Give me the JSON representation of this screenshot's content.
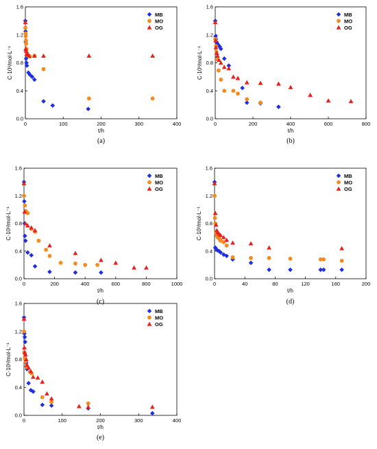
{
  "colors": {
    "MB": "#1f2fe0",
    "MO": "#f58a1f",
    "OG": "#e8211c"
  },
  "chart_data": [
    {
      "panel": "(a)",
      "type": "scatter",
      "xlabel": "t/h",
      "ylabel": "C·10³/mol·L⁻¹",
      "xlim": [
        0,
        400
      ],
      "ylim": [
        0,
        1.6
      ],
      "xticks": [
        "0",
        "100",
        "200",
        "300",
        "400"
      ],
      "yticks": [
        "0.0",
        "0.4",
        "0.8",
        "1.2",
        "1.6"
      ],
      "legend": "top-right",
      "series": [
        {
          "name": "MB",
          "marker": "diamond",
          "points": [
            [
              0,
              1.4
            ],
            [
              0.5,
              1.25
            ],
            [
              1,
              1.1
            ],
            [
              1.5,
              0.98
            ],
            [
              2,
              0.86
            ],
            [
              3,
              0.8
            ],
            [
              4,
              0.76
            ],
            [
              8,
              0.66
            ],
            [
              12,
              0.63
            ],
            [
              18,
              0.6
            ],
            [
              24,
              0.56
            ],
            [
              48,
              0.25
            ],
            [
              72,
              0.19
            ],
            [
              166,
              0.14
            ]
          ]
        },
        {
          "name": "MO",
          "marker": "circle",
          "points": [
            [
              0,
              1.3
            ],
            [
              0.5,
              1.22
            ],
            [
              1,
              1.18
            ],
            [
              1.5,
              1.12
            ],
            [
              2,
              1.07
            ],
            [
              3,
              1.0
            ],
            [
              4,
              0.94
            ],
            [
              6,
              0.91
            ],
            [
              12,
              0.89
            ],
            [
              24,
              0.9
            ],
            [
              48,
              0.71
            ],
            [
              168,
              0.29
            ],
            [
              336,
              0.29
            ]
          ]
        },
        {
          "name": "OG",
          "marker": "triangle",
          "points": [
            [
              0,
              1.38
            ],
            [
              1,
              1.0
            ],
            [
              2,
              0.97
            ],
            [
              4,
              0.93
            ],
            [
              6,
              0.92
            ],
            [
              10,
              0.9
            ],
            [
              24,
              0.9
            ],
            [
              48,
              0.9
            ],
            [
              168,
              0.9
            ],
            [
              336,
              0.9
            ]
          ]
        }
      ]
    },
    {
      "panel": "(b)",
      "type": "scatter",
      "xlabel": "t/h",
      "ylabel": "C·10³/mol·L⁻¹",
      "xlim": [
        0,
        800
      ],
      "ylim": [
        0,
        1.6
      ],
      "xticks": [
        "0",
        "200",
        "400",
        "600",
        "800"
      ],
      "yticks": [
        "0.0",
        "0.4",
        "0.8",
        "1.2",
        "1.6"
      ],
      "legend": "top-right",
      "series": [
        {
          "name": "MB",
          "marker": "diamond",
          "points": [
            [
              0,
              1.4
            ],
            [
              2,
              1.18
            ],
            [
              4,
              1.14
            ],
            [
              6,
              1.1
            ],
            [
              10,
              1.08
            ],
            [
              18,
              1.05
            ],
            [
              24,
              1.03
            ],
            [
              30,
              1.0
            ],
            [
              48,
              0.86
            ],
            [
              72,
              0.76
            ],
            [
              144,
              0.44
            ],
            [
              168,
              0.23
            ],
            [
              240,
              0.22
            ],
            [
              336,
              0.17
            ]
          ]
        },
        {
          "name": "MO",
          "marker": "circle",
          "points": [
            [
              0,
              1.14
            ],
            [
              4,
              1.04
            ],
            [
              6,
              0.96
            ],
            [
              10,
              0.85
            ],
            [
              18,
              0.69
            ],
            [
              30,
              0.56
            ],
            [
              48,
              0.4
            ],
            [
              96,
              0.4
            ],
            [
              120,
              0.36
            ],
            [
              168,
              0.28
            ],
            [
              240,
              0.23
            ]
          ]
        },
        {
          "name": "OG",
          "marker": "triangle",
          "points": [
            [
              0,
              1.38
            ],
            [
              2,
              1.12
            ],
            [
              4,
              1.02
            ],
            [
              8,
              0.94
            ],
            [
              12,
              0.9
            ],
            [
              20,
              0.84
            ],
            [
              30,
              0.8
            ],
            [
              48,
              0.74
            ],
            [
              72,
              0.72
            ],
            [
              96,
              0.6
            ],
            [
              120,
              0.58
            ],
            [
              168,
              0.52
            ],
            [
              240,
              0.51
            ],
            [
              336,
              0.5
            ],
            [
              400,
              0.45
            ],
            [
              504,
              0.34
            ],
            [
              600,
              0.26
            ],
            [
              720,
              0.25
            ]
          ]
        }
      ]
    },
    {
      "panel": "(c)",
      "type": "scatter",
      "xlabel": "t/h",
      "ylabel": "C·10³/mol·L⁻¹",
      "xlim": [
        0,
        1000
      ],
      "ylim": [
        0,
        1.6
      ],
      "xticks": [
        "0",
        "200",
        "400",
        "600",
        "800",
        "1000"
      ],
      "yticks": [
        "0.0",
        "0.4",
        "0.8",
        "1.2",
        "1.6"
      ],
      "legend": "top-right",
      "series": [
        {
          "name": "MB",
          "marker": "diamond",
          "points": [
            [
              0,
              1.4
            ],
            [
              2,
              1.12
            ],
            [
              4,
              0.8
            ],
            [
              6,
              0.62
            ],
            [
              10,
              0.55
            ],
            [
              24,
              0.38
            ],
            [
              48,
              0.34
            ],
            [
              72,
              0.18
            ],
            [
              168,
              0.1
            ],
            [
              336,
              0.09
            ],
            [
              504,
              0.09
            ]
          ]
        },
        {
          "name": "MO",
          "marker": "circle",
          "points": [
            [
              0,
              1.2
            ],
            [
              6,
              1.06
            ],
            [
              12,
              0.98
            ],
            [
              24,
              0.95
            ],
            [
              48,
              0.72
            ],
            [
              72,
              0.68
            ],
            [
              96,
              0.55
            ],
            [
              144,
              0.42
            ],
            [
              168,
              0.33
            ],
            [
              240,
              0.23
            ],
            [
              336,
              0.22
            ],
            [
              400,
              0.2
            ],
            [
              480,
              0.2
            ]
          ]
        },
        {
          "name": "OG",
          "marker": "triangle",
          "points": [
            [
              0,
              1.38
            ],
            [
              4,
              0.97
            ],
            [
              10,
              0.8
            ],
            [
              24,
              0.77
            ],
            [
              48,
              0.74
            ],
            [
              72,
              0.7
            ],
            [
              168,
              0.48
            ],
            [
              336,
              0.37
            ],
            [
              504,
              0.27
            ],
            [
              600,
              0.23
            ],
            [
              720,
              0.16
            ],
            [
              800,
              0.16
            ]
          ]
        }
      ]
    },
    {
      "panel": "(d)",
      "type": "scatter",
      "xlabel": "t/h",
      "ylabel": "C·10³/mol·L⁻¹",
      "xlim": [
        0,
        200
      ],
      "ylim": [
        0,
        1.6
      ],
      "xticks": [
        "0",
        "40",
        "80",
        "120",
        "160",
        "200"
      ],
      "yticks": [
        "0.0",
        "0.4",
        "0.8",
        "1.2",
        "1.6"
      ],
      "legend": "top-right",
      "series": [
        {
          "name": "MB",
          "marker": "diamond",
          "points": [
            [
              0,
              1.4
            ],
            [
              1,
              0.45
            ],
            [
              2,
              0.43
            ],
            [
              4,
              0.41
            ],
            [
              6,
              0.4
            ],
            [
              8,
              0.38
            ],
            [
              12,
              0.35
            ],
            [
              16,
              0.33
            ],
            [
              24,
              0.28
            ],
            [
              48,
              0.23
            ],
            [
              72,
              0.13
            ],
            [
              100,
              0.13
            ],
            [
              140,
              0.13
            ],
            [
              144,
              0.13
            ],
            [
              168,
              0.13
            ]
          ]
        },
        {
          "name": "MO",
          "marker": "circle",
          "points": [
            [
              0,
              1.2
            ],
            [
              0.5,
              0.88
            ],
            [
              1,
              0.8
            ],
            [
              2,
              0.67
            ],
            [
              3,
              0.62
            ],
            [
              4,
              0.6
            ],
            [
              6,
              0.58
            ],
            [
              8,
              0.55
            ],
            [
              12,
              0.53
            ],
            [
              16,
              0.48
            ],
            [
              24,
              0.31
            ],
            [
              48,
              0.3
            ],
            [
              72,
              0.3
            ],
            [
              100,
              0.29
            ],
            [
              140,
              0.28
            ],
            [
              144,
              0.28
            ],
            [
              168,
              0.26
            ]
          ]
        },
        {
          "name": "OG",
          "marker": "triangle",
          "points": [
            [
              0,
              1.38
            ],
            [
              1,
              0.95
            ],
            [
              2,
              0.78
            ],
            [
              3,
              0.7
            ],
            [
              4,
              0.67
            ],
            [
              6,
              0.65
            ],
            [
              8,
              0.63
            ],
            [
              12,
              0.6
            ],
            [
              16,
              0.56
            ],
            [
              24,
              0.52
            ],
            [
              48,
              0.51
            ],
            [
              72,
              0.45
            ],
            [
              168,
              0.44
            ]
          ]
        }
      ]
    },
    {
      "panel": "(e)",
      "type": "scatter",
      "xlabel": "t/h",
      "ylabel": "C·10³/mol·L⁻¹",
      "xlim": [
        0,
        400
      ],
      "ylim": [
        0,
        1.6
      ],
      "xticks": [
        "0",
        "100",
        "200",
        "300",
        "400"
      ],
      "yticks": [
        "0.0",
        "0.4",
        "0.8",
        "1.2",
        "1.6"
      ],
      "legend": "top-right",
      "series": [
        {
          "name": "MB",
          "marker": "diamond",
          "points": [
            [
              0,
              1.4
            ],
            [
              1,
              1.17
            ],
            [
              2,
              1.12
            ],
            [
              3,
              1.05
            ],
            [
              4,
              0.8
            ],
            [
              6,
              0.75
            ],
            [
              8,
              0.66
            ],
            [
              12,
              0.46
            ],
            [
              18,
              0.36
            ],
            [
              24,
              0.34
            ],
            [
              48,
              0.15
            ],
            [
              72,
              0.14
            ],
            [
              168,
              0.1
            ],
            [
              336,
              0.03
            ]
          ]
        },
        {
          "name": "MO",
          "marker": "circle",
          "points": [
            [
              0,
              1.2
            ],
            [
              1,
              0.9
            ],
            [
              2,
              0.82
            ],
            [
              4,
              0.77
            ],
            [
              6,
              0.7
            ],
            [
              10,
              0.68
            ],
            [
              16,
              0.62
            ],
            [
              20,
              0.6
            ],
            [
              48,
              0.26
            ],
            [
              72,
              0.19
            ],
            [
              168,
              0.17
            ]
          ]
        },
        {
          "name": "OG",
          "marker": "triangle",
          "points": [
            [
              0,
              1.38
            ],
            [
              1,
              0.97
            ],
            [
              2,
              0.9
            ],
            [
              4,
              0.87
            ],
            [
              6,
              0.8
            ],
            [
              8,
              0.72
            ],
            [
              12,
              0.68
            ],
            [
              18,
              0.63
            ],
            [
              24,
              0.55
            ],
            [
              36,
              0.54
            ],
            [
              48,
              0.48
            ],
            [
              60,
              0.31
            ],
            [
              72,
              0.24
            ],
            [
              144,
              0.13
            ],
            [
              168,
              0.12
            ],
            [
              336,
              0.12
            ]
          ]
        }
      ]
    }
  ]
}
